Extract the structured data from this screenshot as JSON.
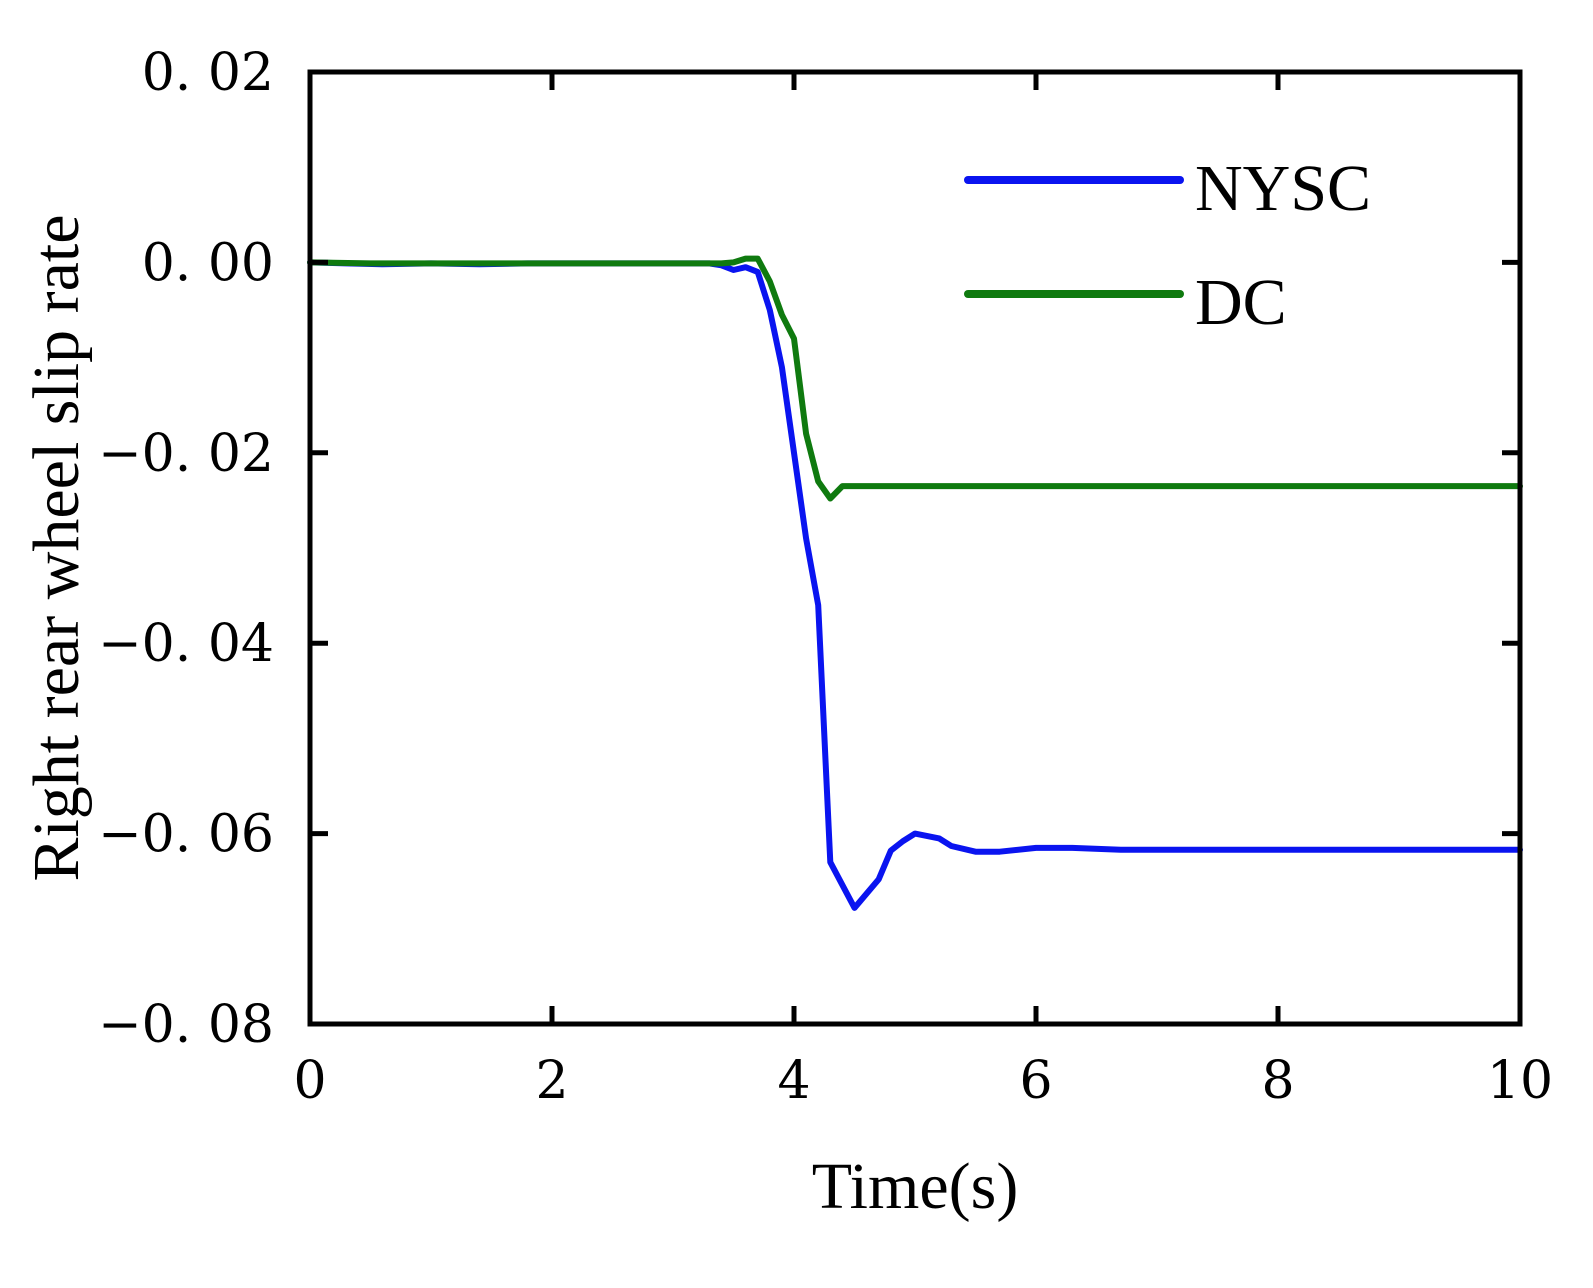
{
  "chart_data": {
    "type": "line",
    "title": "",
    "xlabel": "Time(s)",
    "ylabel": "Right rear wheel slip rate",
    "xlim": [
      0,
      10
    ],
    "ylim": [
      -0.08,
      0.02
    ],
    "x_ticks": [
      0,
      2,
      4,
      6,
      8,
      10
    ],
    "x_tick_labels": [
      "0",
      "2",
      "4",
      "6",
      "8",
      "10"
    ],
    "y_ticks": [
      0.02,
      0.0,
      -0.02,
      -0.04,
      -0.06,
      -0.08
    ],
    "y_tick_labels": [
      "0. 02",
      "0. 00",
      "−0. 02",
      "−0. 04",
      "−0. 06",
      "−0. 08"
    ],
    "grid": false,
    "legend_position": "top-right",
    "series": [
      {
        "name": "NYSC",
        "color": "#0a14f0",
        "points": [
          [
            0,
            0.0
          ],
          [
            0.3,
            -0.0001
          ],
          [
            0.6,
            -0.0002
          ],
          [
            1.0,
            -0.0001
          ],
          [
            1.4,
            -0.0002
          ],
          [
            1.8,
            -0.0001
          ],
          [
            2.2,
            -0.0001
          ],
          [
            2.6,
            -0.0001
          ],
          [
            3.0,
            -0.0001
          ],
          [
            3.3,
            -0.0001
          ],
          [
            3.4,
            -0.0003
          ],
          [
            3.5,
            -0.0008
          ],
          [
            3.6,
            -0.0005
          ],
          [
            3.7,
            -0.001
          ],
          [
            3.8,
            -0.005
          ],
          [
            3.9,
            -0.011
          ],
          [
            4.0,
            -0.02
          ],
          [
            4.1,
            -0.029
          ],
          [
            4.2,
            -0.036
          ],
          [
            4.3,
            -0.063
          ],
          [
            4.5,
            -0.0678
          ],
          [
            4.7,
            -0.0648
          ],
          [
            4.8,
            -0.0618
          ],
          [
            4.9,
            -0.0608
          ],
          [
            5.0,
            -0.06
          ],
          [
            5.2,
            -0.0605
          ],
          [
            5.3,
            -0.0613
          ],
          [
            5.5,
            -0.0619
          ],
          [
            5.7,
            -0.0619
          ],
          [
            6.0,
            -0.0615
          ],
          [
            6.3,
            -0.0615
          ],
          [
            6.7,
            -0.0617
          ],
          [
            7.0,
            -0.0617
          ],
          [
            8.0,
            -0.0617
          ],
          [
            9.0,
            -0.0617
          ],
          [
            10.0,
            -0.0617
          ]
        ]
      },
      {
        "name": "DC",
        "color": "#0f7a0f",
        "points": [
          [
            0,
            0.0
          ],
          [
            0.5,
            -0.0001
          ],
          [
            1.0,
            -0.0001
          ],
          [
            2.0,
            -0.0001
          ],
          [
            3.0,
            -0.0001
          ],
          [
            3.4,
            -0.0001
          ],
          [
            3.5,
            0.0
          ],
          [
            3.6,
            0.0004
          ],
          [
            3.7,
            0.0004
          ],
          [
            3.8,
            -0.002
          ],
          [
            3.9,
            -0.0055
          ],
          [
            4.0,
            -0.008
          ],
          [
            4.1,
            -0.018
          ],
          [
            4.2,
            -0.023
          ],
          [
            4.3,
            -0.0248
          ],
          [
            4.4,
            -0.0235
          ],
          [
            5.0,
            -0.0235
          ],
          [
            6.0,
            -0.0235
          ],
          [
            7.0,
            -0.0235
          ],
          [
            8.0,
            -0.0235
          ],
          [
            9.0,
            -0.0235
          ],
          [
            10.0,
            -0.0235
          ]
        ]
      }
    ]
  }
}
